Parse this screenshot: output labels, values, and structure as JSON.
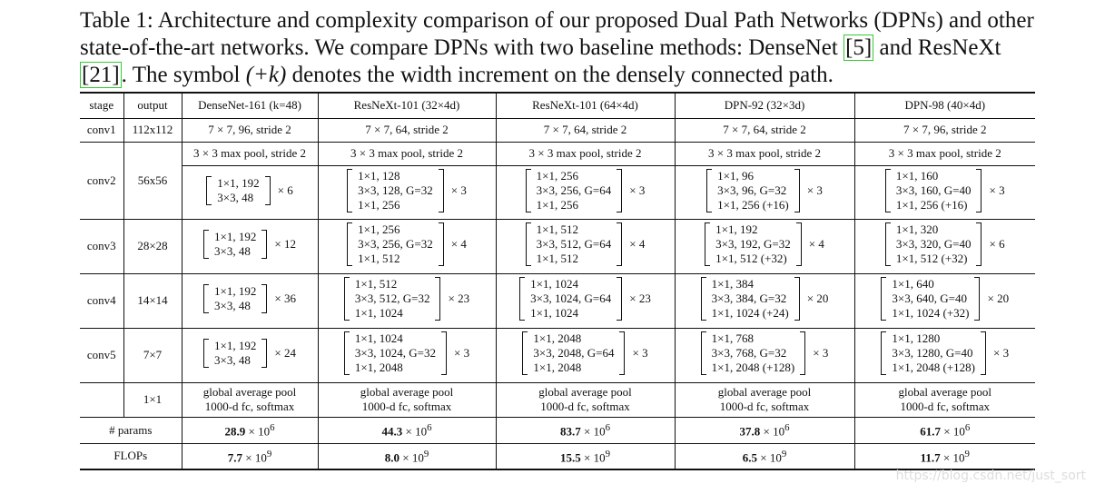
{
  "caption": [
    "Table 1: Architecture and complexity comparison of our proposed Dual Path Networks (DPNs) and other state-of-the-art networks. We compare DPNs with two baseline methods: DenseNet ",
    "[5]",
    " and ResNeXt ",
    "[21]",
    ". The symbol ",
    "(+k)",
    " denotes the width increment on the densely connected path."
  ],
  "table": {
    "header": [
      "stage",
      "output",
      "DenseNet-161 (k=48)",
      "ResNeXt-101 (32×4d)",
      "ResNeXt-101 (64×4d)",
      "DPN-92 (32×3d)",
      "DPN-98 (40×4d)"
    ],
    "conv1": {
      "stage": "conv1",
      "output": "112x112",
      "cells": [
        "7 × 7, 96, stride 2",
        "7 × 7, 64, stride 2",
        "7 × 7, 64, stride 2",
        "7 × 7, 64, stride 2",
        "7 × 7, 96, stride 2"
      ]
    },
    "blocks": [
      {
        "stage": "conv2",
        "output": "56x56",
        "pool": [
          "3 × 3 max pool, stride 2",
          "3 × 3 max pool, stride 2",
          "3 × 3 max pool, stride 2",
          "3 × 3 max pool, stride 2",
          "3 × 3 max pool, stride 2"
        ],
        "cells": [
          {
            "lines": [
              "1×1, 192",
              "3×3, 48"
            ],
            "times": "× 6"
          },
          {
            "lines": [
              "1×1, 128",
              "3×3, 128, G=32",
              "1×1, 256"
            ],
            "times": "× 3"
          },
          {
            "lines": [
              "1×1, 256",
              "3×3, 256, G=64",
              "1×1, 256"
            ],
            "times": "× 3"
          },
          {
            "lines": [
              "1×1, 96",
              "3×3, 96, G=32",
              "1×1, 256 (+16)"
            ],
            "times": "× 3"
          },
          {
            "lines": [
              "1×1, 160",
              "3×3, 160, G=40",
              "1×1, 256 (+16)"
            ],
            "times": "× 3"
          }
        ]
      },
      {
        "stage": "conv3",
        "output": "28×28",
        "cells": [
          {
            "lines": [
              "1×1, 192",
              "3×3, 48"
            ],
            "times": "× 12"
          },
          {
            "lines": [
              "1×1, 256",
              "3×3, 256, G=32",
              "1×1, 512"
            ],
            "times": "× 4"
          },
          {
            "lines": [
              "1×1, 512",
              "3×3, 512, G=64",
              "1×1, 512"
            ],
            "times": "× 4"
          },
          {
            "lines": [
              "1×1, 192",
              "3×3, 192, G=32",
              "1×1, 512 (+32)"
            ],
            "times": "× 4"
          },
          {
            "lines": [
              "1×1, 320",
              "3×3, 320, G=40",
              "1×1, 512 (+32)"
            ],
            "times": "× 6"
          }
        ]
      },
      {
        "stage": "conv4",
        "output": "14×14",
        "cells": [
          {
            "lines": [
              "1×1, 192",
              "3×3, 48"
            ],
            "times": "× 36"
          },
          {
            "lines": [
              "1×1, 512",
              "3×3, 512, G=32",
              "1×1, 1024"
            ],
            "times": "× 23"
          },
          {
            "lines": [
              "1×1, 1024",
              "3×3, 1024, G=64",
              "1×1, 1024"
            ],
            "times": "× 23"
          },
          {
            "lines": [
              "1×1, 384",
              "3×3, 384, G=32",
              "1×1, 1024 (+24)"
            ],
            "times": "× 20"
          },
          {
            "lines": [
              "1×1, 640",
              "3×3, 640, G=40",
              "1×1, 1024 (+32)"
            ],
            "times": "× 20"
          }
        ]
      },
      {
        "stage": "conv5",
        "output": "7×7",
        "cells": [
          {
            "lines": [
              "1×1, 192",
              "3×3, 48"
            ],
            "times": "× 24"
          },
          {
            "lines": [
              "1×1, 1024",
              "3×3, 1024, G=32",
              "1×1, 2048"
            ],
            "times": "× 3"
          },
          {
            "lines": [
              "1×1, 2048",
              "3×3, 2048, G=64",
              "1×1, 2048"
            ],
            "times": "× 3"
          },
          {
            "lines": [
              "1×1, 768",
              "3×3, 768, G=32",
              "1×1, 2048 (+128)"
            ],
            "times": "× 3"
          },
          {
            "lines": [
              "1×1, 1280",
              "3×3, 1280, G=40",
              "1×1, 2048 (+128)"
            ],
            "times": "× 3"
          }
        ]
      }
    ],
    "final": {
      "output": "1×1",
      "cells": [
        [
          "global average pool",
          "1000-d fc, softmax"
        ],
        [
          "global average pool",
          "1000-d fc, softmax"
        ],
        [
          "global average pool",
          "1000-d fc, softmax"
        ],
        [
          "global average pool",
          "1000-d fc, softmax"
        ],
        [
          "global average pool",
          "1000-d fc, softmax"
        ]
      ]
    },
    "totals": [
      {
        "label": "# params",
        "values": [
          {
            "base": "28.9",
            "times": "× 10",
            "exp": "6"
          },
          {
            "base": "44.3",
            "times": "× 10",
            "exp": "6"
          },
          {
            "base": "83.7",
            "times": "× 10",
            "exp": "6"
          },
          {
            "base": "37.8",
            "times": "× 10",
            "exp": "6"
          },
          {
            "base": "61.7",
            "times": "× 10",
            "exp": "6"
          }
        ]
      },
      {
        "label": "FLOPs",
        "values": [
          {
            "base": "7.7",
            "times": "× 10",
            "exp": "9"
          },
          {
            "base": "8.0",
            "times": "× 10",
            "exp": "9"
          },
          {
            "base": "15.5",
            "times": "× 10",
            "exp": "9"
          },
          {
            "base": "6.5",
            "times": "× 10",
            "exp": "9"
          },
          {
            "base": "11.7",
            "times": "× 10",
            "exp": "9"
          }
        ]
      }
    ]
  },
  "watermark": "https://blog.csdn.net/just_sort"
}
